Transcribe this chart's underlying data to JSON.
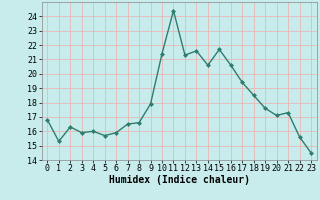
{
  "x": [
    0,
    1,
    2,
    3,
    4,
    5,
    6,
    7,
    8,
    9,
    10,
    11,
    12,
    13,
    14,
    15,
    16,
    17,
    18,
    19,
    20,
    21,
    22,
    23
  ],
  "y": [
    16.8,
    15.3,
    16.3,
    15.9,
    16.0,
    15.7,
    15.9,
    16.5,
    16.6,
    17.9,
    21.4,
    24.4,
    21.3,
    21.6,
    20.6,
    21.7,
    20.6,
    19.4,
    18.5,
    17.6,
    17.1,
    17.3,
    15.6,
    14.5
  ],
  "line_color": "#2e7d6e",
  "marker": "D",
  "markersize": 2.0,
  "linewidth": 1.0,
  "background_color": "#c8ecec",
  "grid_color": "#e8b8b8",
  "xlabel": "Humidex (Indice chaleur)",
  "xlabel_fontsize": 7,
  "tick_fontsize": 6,
  "ylim": [
    14,
    25
  ],
  "xlim": [
    -0.5,
    23.5
  ],
  "yticks": [
    14,
    15,
    16,
    17,
    18,
    19,
    20,
    21,
    22,
    23,
    24
  ],
  "xticks": [
    0,
    1,
    2,
    3,
    4,
    5,
    6,
    7,
    8,
    9,
    10,
    11,
    12,
    13,
    14,
    15,
    16,
    17,
    18,
    19,
    20,
    21,
    22,
    23
  ]
}
